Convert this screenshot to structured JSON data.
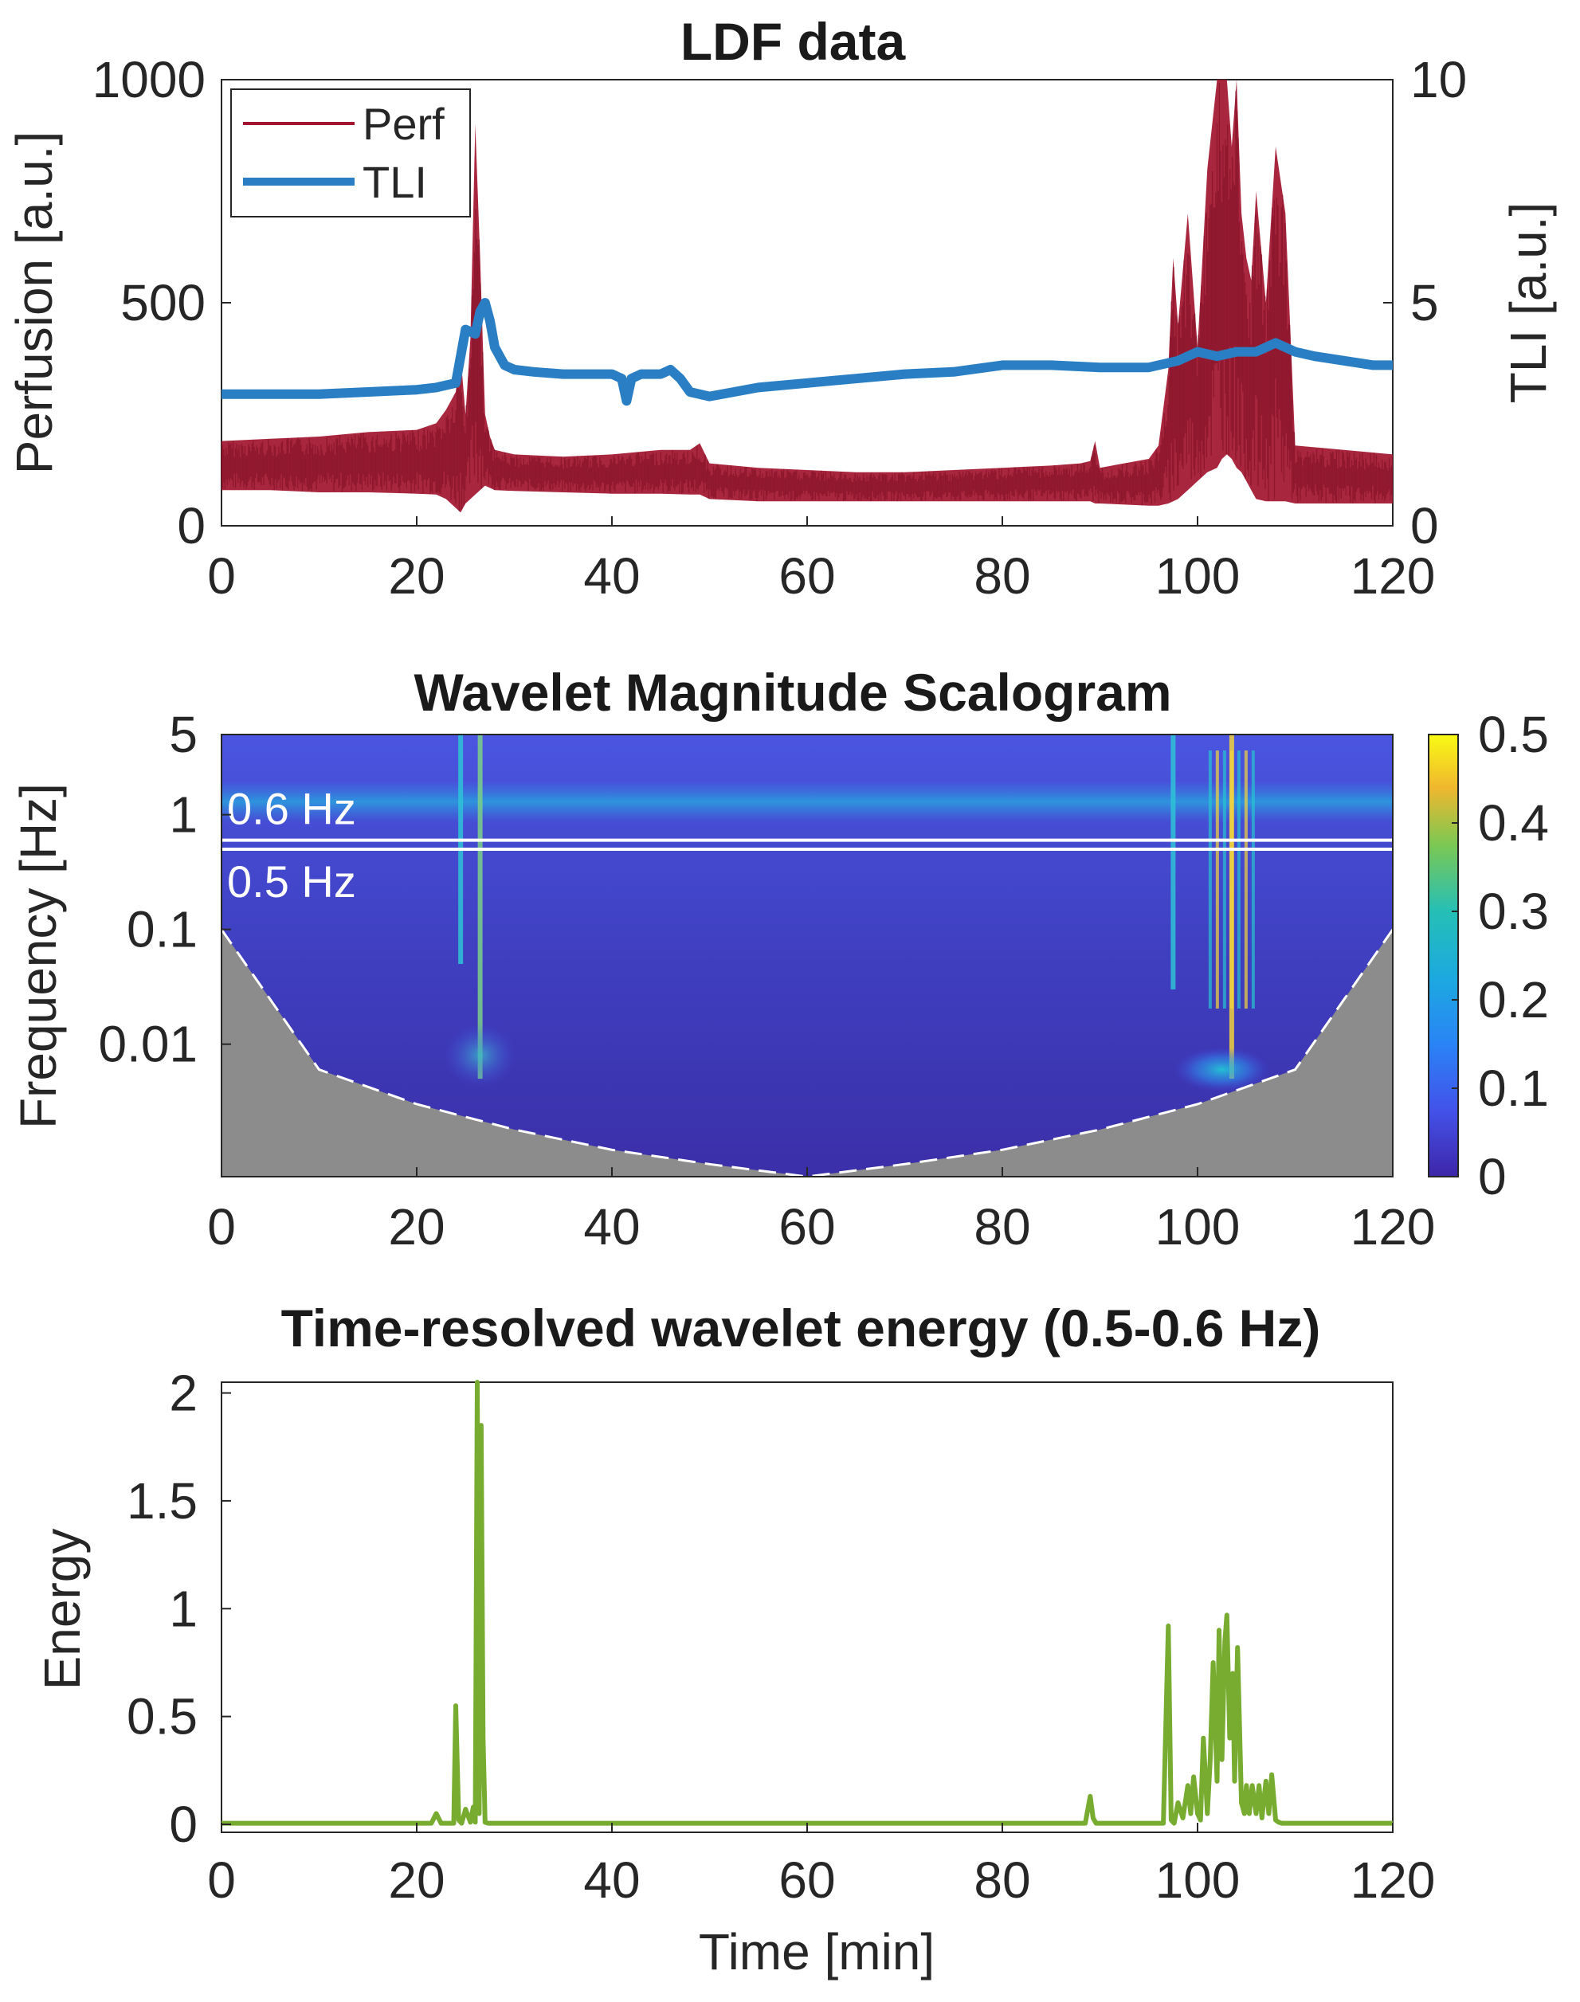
{
  "chart_data": [
    {
      "id": "ldf",
      "type": "line",
      "title": "LDF data",
      "xlabel": "",
      "ylabel": "Perfusion [a.u.]",
      "y2label": "TLI [a.u.]",
      "xlim": [
        0,
        120
      ],
      "ylim": [
        0,
        1000
      ],
      "y2lim": [
        0,
        10
      ],
      "xticks": [
        "0",
        "20",
        "40",
        "60",
        "80",
        "100",
        "120"
      ],
      "yticks": [
        "0",
        "500",
        "1000"
      ],
      "y2ticks": [
        "0",
        "5",
        "10"
      ],
      "legend": {
        "position": "top-left",
        "entries": [
          "Perf",
          "TLI"
        ]
      },
      "series": [
        {
          "name": "Perf",
          "axis": "left",
          "color": "#a2142f",
          "x": [
            0,
            5,
            10,
            15,
            20,
            22,
            23,
            24,
            24.5,
            25,
            25.5,
            26,
            26.5,
            27,
            27.5,
            28,
            30,
            35,
            40,
            45,
            48,
            49,
            50,
            55,
            60,
            65,
            70,
            75,
            80,
            85,
            88,
            89,
            89.5,
            90,
            95,
            96,
            97,
            97.5,
            98,
            99,
            100,
            101,
            102,
            102.5,
            103,
            103.5,
            104,
            104.5,
            105,
            105.5,
            106,
            107,
            108,
            109,
            110,
            115,
            120
          ],
          "y_low": [
            80,
            80,
            75,
            75,
            72,
            70,
            60,
            40,
            30,
            50,
            60,
            70,
            80,
            90,
            85,
            80,
            78,
            75,
            72,
            72,
            70,
            70,
            60,
            55,
            55,
            55,
            55,
            55,
            55,
            55,
            55,
            55,
            50,
            50,
            45,
            45,
            50,
            55,
            60,
            80,
            100,
            120,
            130,
            150,
            160,
            150,
            130,
            120,
            100,
            80,
            60,
            55,
            55,
            55,
            50,
            50,
            50
          ],
          "y_high": [
            190,
            195,
            200,
            210,
            215,
            230,
            260,
            300,
            380,
            250,
            420,
            900,
            600,
            250,
            200,
            170,
            160,
            155,
            160,
            170,
            170,
            185,
            140,
            130,
            125,
            120,
            120,
            125,
            130,
            135,
            140,
            145,
            190,
            130,
            150,
            180,
            350,
            600,
            450,
            700,
            400,
            800,
            1000,
            1000,
            1000,
            850,
            1000,
            700,
            600,
            550,
            750,
            500,
            850,
            700,
            180,
            170,
            160
          ]
        },
        {
          "name": "TLI",
          "axis": "right",
          "color": "#2a7fc4",
          "x": [
            0,
            5,
            10,
            15,
            20,
            22,
            24,
            25,
            26,
            26.5,
            27,
            27.5,
            28,
            29,
            30,
            32,
            35,
            38,
            40,
            41,
            41.5,
            42,
            43,
            45,
            46,
            47,
            48,
            50,
            55,
            60,
            65,
            70,
            75,
            80,
            85,
            90,
            95,
            98,
            100,
            102,
            104,
            106,
            108,
            110,
            112,
            115,
            118,
            120
          ],
          "y": [
            2.95,
            2.95,
            2.95,
            3.0,
            3.05,
            3.1,
            3.2,
            4.4,
            4.3,
            4.8,
            5.0,
            4.6,
            4.0,
            3.6,
            3.5,
            3.45,
            3.4,
            3.4,
            3.4,
            3.3,
            2.8,
            3.3,
            3.4,
            3.4,
            3.5,
            3.3,
            3.0,
            2.9,
            3.1,
            3.2,
            3.3,
            3.4,
            3.45,
            3.6,
            3.6,
            3.55,
            3.55,
            3.7,
            3.9,
            3.8,
            3.9,
            3.9,
            4.1,
            3.9,
            3.8,
            3.7,
            3.6,
            3.6
          ]
        }
      ]
    },
    {
      "id": "scalogram",
      "type": "heatmap",
      "title": "Wavelet Magnitude Scalogram",
      "xlabel": "",
      "ylabel": "Frequency [Hz]",
      "xlim": [
        0,
        120
      ],
      "yscale": "log",
      "ylim": [
        0.0007,
        5
      ],
      "xticks": [
        "0",
        "20",
        "40",
        "60",
        "80",
        "100",
        "120"
      ],
      "yticks": [
        {
          "value": 5,
          "label": "5"
        },
        {
          "value": 1,
          "label": "1"
        },
        {
          "value": 0.1,
          "label": "0.1"
        },
        {
          "value": 0.01,
          "label": "0.01"
        }
      ],
      "colorbar": {
        "range": [
          0,
          0.5
        ],
        "ticks": [
          "0",
          "0.1",
          "0.2",
          "0.3",
          "0.4",
          "0.5"
        ]
      },
      "band_lines": [
        {
          "value": 0.6,
          "label": "0.6 Hz"
        },
        {
          "value": 0.5,
          "label": "0.5 Hz"
        }
      ],
      "cone_of_influence": {
        "x": [
          0,
          10,
          20,
          30,
          40,
          50,
          60,
          70,
          80,
          90,
          100,
          110,
          120
        ],
        "freq": [
          0.1,
          0.006,
          0.003,
          0.0018,
          0.0012,
          0.0009,
          0.0007,
          0.0009,
          0.0012,
          0.0018,
          0.003,
          0.006,
          0.1
        ]
      },
      "features": [
        {
          "name": "heart-rate band",
          "x_range": [
            0,
            120
          ],
          "freq": 1.3,
          "magnitude": 0.22
        },
        {
          "name": "burst near 24 min",
          "x": 24.5,
          "freq_range": [
            0.05,
            5
          ],
          "magnitude": 0.2
        },
        {
          "name": "burst near 26.5 min",
          "x": 26.5,
          "freq_range": [
            0.005,
            5
          ],
          "magnitude": 0.35
        },
        {
          "name": "burst near 97.5 min",
          "x": 97.5,
          "freq_range": [
            0.03,
            5
          ],
          "magnitude": 0.25
        },
        {
          "name": "burst near 103 min",
          "x": 103.5,
          "freq_range": [
            0.005,
            5
          ],
          "magnitude": 0.5
        },
        {
          "name": "low-freq blob",
          "x": 102.5,
          "freq": 0.006,
          "magnitude": 0.3
        }
      ]
    },
    {
      "id": "energy",
      "type": "line",
      "title": "Time-resolved wavelet energy (0.5-0.6 Hz)",
      "xlabel": "Time [min]",
      "ylabel": "Energy",
      "xlim": [
        0,
        120
      ],
      "ylim": [
        0,
        2.05
      ],
      "xticks": [
        "0",
        "20",
        "40",
        "60",
        "80",
        "100",
        "120"
      ],
      "yticks": [
        "0",
        "0.5",
        "1",
        "1.5",
        "2"
      ],
      "series": [
        {
          "name": "Energy",
          "color": "#77ac30",
          "x": [
            0,
            20,
            21.5,
            22,
            22.5,
            23.8,
            24,
            24.3,
            24.6,
            25,
            25.5,
            25.8,
            26,
            26.2,
            26.4,
            26.6,
            26.8,
            27,
            27.3,
            30,
            60,
            88.5,
            89,
            89.3,
            89.6,
            95,
            96.5,
            97,
            97.3,
            97.6,
            98,
            98.5,
            99,
            99.3,
            99.6,
            100,
            100.3,
            100.6,
            101,
            101.3,
            101.6,
            102,
            102.2,
            102.5,
            102.8,
            103,
            103.3,
            103.6,
            103.8,
            104.1,
            104.5,
            104.8,
            105,
            105.3,
            105.6,
            106,
            106.3,
            106.6,
            107,
            107.3,
            107.6,
            108,
            108.3,
            108.6,
            109,
            112,
            115,
            120
          ],
          "y": [
            0.005,
            0.005,
            0.005,
            0.05,
            0.005,
            0.005,
            0.55,
            0.02,
            0.005,
            0.07,
            0.01,
            0.08,
            0.01,
            2.05,
            0.05,
            1.85,
            0.4,
            0.01,
            0.005,
            0.005,
            0.005,
            0.005,
            0.13,
            0.03,
            0.005,
            0.005,
            0.005,
            0.92,
            0.02,
            0.005,
            0.1,
            0.03,
            0.18,
            0.05,
            0.22,
            0.05,
            0.02,
            0.4,
            0.05,
            0.3,
            0.75,
            0.2,
            0.9,
            0.3,
            0.85,
            0.97,
            0.4,
            0.7,
            0.2,
            0.82,
            0.1,
            0.05,
            0.18,
            0.05,
            0.18,
            0.05,
            0.18,
            0.03,
            0.2,
            0.05,
            0.23,
            0.02,
            0.01,
            0.005,
            0.005,
            0.005,
            0.005,
            0.005
          ]
        }
      ]
    }
  ]
}
